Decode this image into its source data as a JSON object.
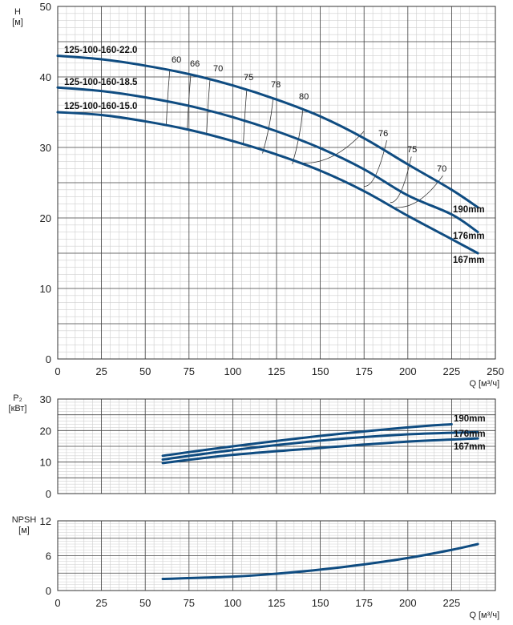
{
  "chart_data": [
    {
      "type": "line",
      "title": "",
      "ylabel": "H",
      "yunit": "[м]",
      "xlabel": "Q",
      "xunit": "[м³/ч]",
      "xlim": [
        0,
        250
      ],
      "ylim": [
        0,
        50
      ],
      "xticks": [
        0,
        25,
        50,
        75,
        100,
        125,
        150,
        175,
        200,
        225,
        250
      ],
      "yticks": [
        0,
        10,
        20,
        30,
        40,
        50
      ],
      "grid": true,
      "series": [
        {
          "name": "190mm",
          "model": "125-100-160-22.0",
          "x": [
            0,
            25,
            50,
            75,
            100,
            125,
            150,
            175,
            200,
            225,
            240
          ],
          "y": [
            43,
            42.5,
            41.6,
            40.4,
            38.8,
            36.8,
            34.4,
            31.3,
            27.6,
            24,
            21.5
          ]
        },
        {
          "name": "176mm",
          "model": "125-100-160-18.5",
          "x": [
            0,
            25,
            50,
            75,
            100,
            125,
            150,
            175,
            200,
            225,
            240
          ],
          "y": [
            38.5,
            38,
            37.1,
            35.9,
            34.3,
            32.3,
            29.9,
            26.9,
            23.2,
            20.5,
            18
          ]
        },
        {
          "name": "167mm",
          "model": "125-100-160-15.0",
          "x": [
            0,
            25,
            50,
            75,
            100,
            125,
            150,
            175,
            200,
            225,
            240
          ],
          "y": [
            35,
            34.6,
            33.7,
            32.5,
            30.9,
            29,
            26.7,
            23.8,
            20.3,
            17,
            15
          ]
        }
      ],
      "efficiency_labels": [
        "60",
        "66",
        "70",
        "75",
        "78",
        "80",
        "76",
        "75",
        "70"
      ]
    },
    {
      "type": "line",
      "ylabel": "P₂",
      "yunit": "[кВт]",
      "xlim": [
        0,
        250
      ],
      "ylim": [
        0,
        30
      ],
      "yticks": [
        0,
        10,
        20,
        30
      ],
      "grid": true,
      "series": [
        {
          "name": "190mm",
          "x": [
            60,
            100,
            150,
            200,
            225
          ],
          "y": [
            12,
            15,
            18.3,
            21,
            22
          ]
        },
        {
          "name": "176mm",
          "x": [
            60,
            100,
            150,
            200,
            240
          ],
          "y": [
            10.8,
            13.8,
            16.8,
            18.8,
            19.5
          ]
        },
        {
          "name": "167mm",
          "x": [
            60,
            100,
            150,
            200,
            240
          ],
          "y": [
            9.7,
            12.3,
            14.5,
            16.5,
            17.5
          ]
        }
      ]
    },
    {
      "type": "line",
      "ylabel": "NPSH",
      "yunit": "[м]",
      "xlabel": "Q",
      "xunit": "[м³/ч]",
      "xlim": [
        0,
        250
      ],
      "ylim": [
        0,
        12
      ],
      "xticks": [
        0,
        25,
        50,
        75,
        100,
        125,
        150,
        175,
        200,
        225
      ],
      "yticks": [
        0,
        6,
        12
      ],
      "grid": true,
      "series": [
        {
          "name": "",
          "x": [
            60,
            100,
            125,
            150,
            175,
            200,
            225,
            240
          ],
          "y": [
            2,
            2.4,
            2.9,
            3.6,
            4.5,
            5.6,
            7,
            8
          ]
        }
      ]
    }
  ],
  "colors": {
    "curve": "#0f4c81",
    "grid_major": "#444444",
    "grid_minor": "#cfcfcf",
    "text": "#222222"
  }
}
